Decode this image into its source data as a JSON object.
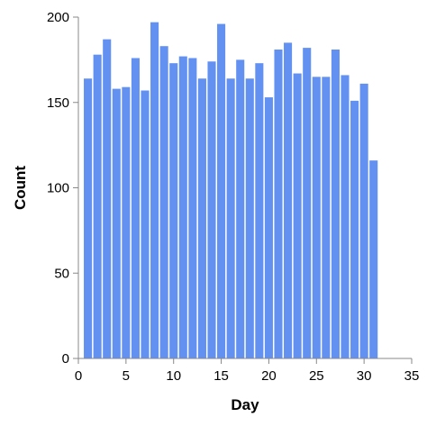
{
  "chart_data": {
    "type": "bar",
    "title": "",
    "xlabel": "Day",
    "ylabel": "Count",
    "x": [
      1,
      2,
      3,
      4,
      5,
      6,
      7,
      8,
      9,
      10,
      11,
      12,
      13,
      14,
      15,
      16,
      17,
      18,
      19,
      20,
      21,
      22,
      23,
      24,
      25,
      26,
      27,
      28,
      29,
      30,
      31
    ],
    "values": [
      164,
      178,
      187,
      158,
      159,
      176,
      157,
      197,
      183,
      173,
      177,
      176,
      164,
      174,
      196,
      164,
      175,
      164,
      173,
      153,
      181,
      185,
      167,
      182,
      165,
      165,
      181,
      166,
      151,
      161,
      116
    ],
    "xlim": [
      0,
      35
    ],
    "ylim": [
      0,
      200
    ],
    "x_ticks": [
      0,
      5,
      10,
      15,
      20,
      25,
      30,
      35
    ],
    "y_ticks": [
      0,
      50,
      100,
      150,
      200
    ],
    "bar_color": "#6391F2",
    "grid": false,
    "legend": "none"
  }
}
